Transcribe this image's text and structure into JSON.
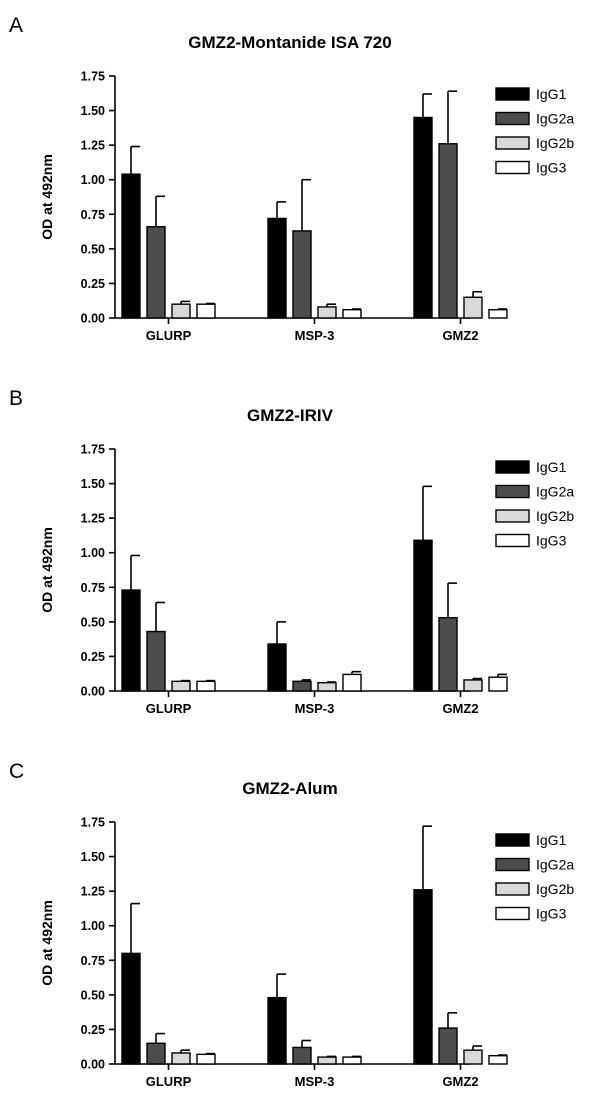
{
  "chart_data": [
    {
      "type": "bar",
      "panel": "A",
      "title": "GMZ2-Montanide ISA 720",
      "ylabel": "OD at 492nm",
      "ylim": [
        0,
        1.75
      ],
      "yticks": [
        "0.00",
        "0.25",
        "0.50",
        "0.75",
        "1.00",
        "1.25",
        "1.50",
        "1.75"
      ],
      "categories": [
        "GLURP",
        "MSP-3",
        "GMZ2"
      ],
      "legend_position": "right",
      "series": [
        {
          "name": "IgG1",
          "color": "#000000",
          "values": [
            1.04,
            0.72,
            1.45
          ],
          "errors": [
            0.2,
            0.12,
            0.17
          ]
        },
        {
          "name": "IgG2a",
          "color": "#4d4d4d",
          "values": [
            0.66,
            0.63,
            1.26
          ],
          "errors": [
            0.22,
            0.37,
            0.38
          ]
        },
        {
          "name": "IgG2b",
          "color": "#d9d9d9",
          "values": [
            0.1,
            0.08,
            0.15
          ],
          "errors": [
            0.02,
            0.02,
            0.04
          ]
        },
        {
          "name": "IgG3",
          "color": "#ffffff",
          "values": [
            0.1,
            0.06,
            0.06
          ],
          "errors": [
            0.005,
            0.005,
            0.005
          ]
        }
      ]
    },
    {
      "type": "bar",
      "panel": "B",
      "title": "GMZ2-IRIV",
      "ylabel": "OD at 492nm",
      "ylim": [
        0,
        1.75
      ],
      "yticks": [
        "0.00",
        "0.25",
        "0.50",
        "0.75",
        "1.00",
        "1.25",
        "1.50",
        "1.75"
      ],
      "categories": [
        "GLURP",
        "MSP-3",
        "GMZ2"
      ],
      "legend_position": "right",
      "series": [
        {
          "name": "IgG1",
          "color": "#000000",
          "values": [
            0.73,
            0.34,
            1.09
          ],
          "errors": [
            0.25,
            0.16,
            0.39
          ]
        },
        {
          "name": "IgG2a",
          "color": "#4d4d4d",
          "values": [
            0.43,
            0.07,
            0.53
          ],
          "errors": [
            0.21,
            0.01,
            0.25
          ]
        },
        {
          "name": "IgG2b",
          "color": "#d9d9d9",
          "values": [
            0.07,
            0.06,
            0.08
          ],
          "errors": [
            0.005,
            0.005,
            0.01
          ]
        },
        {
          "name": "IgG3",
          "color": "#ffffff",
          "values": [
            0.07,
            0.12,
            0.1
          ],
          "errors": [
            0.005,
            0.02,
            0.02
          ]
        }
      ]
    },
    {
      "type": "bar",
      "panel": "C",
      "title": "GMZ2-Alum",
      "ylabel": "OD at 492nm",
      "ylim": [
        0,
        1.75
      ],
      "yticks": [
        "0.00",
        "0.25",
        "0.50",
        "0.75",
        "1.00",
        "1.25",
        "1.50",
        "1.75"
      ],
      "categories": [
        "GLURP",
        "MSP-3",
        "GMZ2"
      ],
      "legend_position": "right",
      "series": [
        {
          "name": "IgG1",
          "color": "#000000",
          "values": [
            0.8,
            0.48,
            1.26
          ],
          "errors": [
            0.36,
            0.17,
            0.46
          ]
        },
        {
          "name": "IgG2a",
          "color": "#4d4d4d",
          "values": [
            0.15,
            0.12,
            0.26
          ],
          "errors": [
            0.07,
            0.05,
            0.11
          ]
        },
        {
          "name": "IgG2b",
          "color": "#d9d9d9",
          "values": [
            0.08,
            0.05,
            0.1
          ],
          "errors": [
            0.02,
            0.005,
            0.03
          ]
        },
        {
          "name": "IgG3",
          "color": "#ffffff",
          "values": [
            0.07,
            0.05,
            0.06
          ],
          "errors": [
            0.005,
            0.005,
            0.005
          ]
        }
      ]
    }
  ]
}
